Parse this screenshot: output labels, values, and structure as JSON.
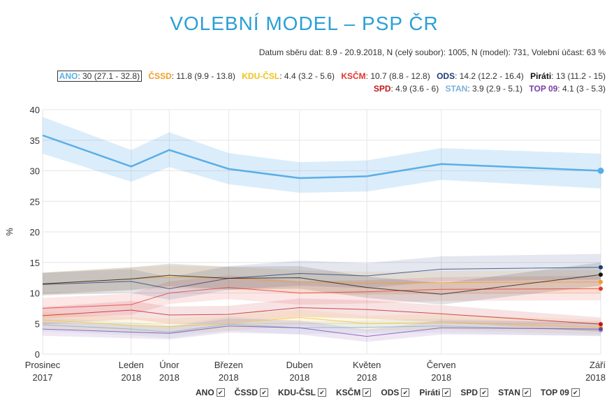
{
  "title": "VOLEBNÍ MODEL – PSP ČR",
  "subtitle": "Datum sběru dat: 8.9 - 20.9.2018, N (celý soubor): 1005, N (model): 731, Volební účast: 63 %",
  "legend_top": [
    {
      "name": "ANO",
      "text": ": 30 (27.1 - 32.8)",
      "color": "#5aaee8"
    },
    {
      "name": "ČSSD",
      "text": ": 11.8 (9.9 - 13.8)",
      "color": "#f29c23"
    },
    {
      "name": "KDU-ČSL",
      "text": ": 4.4 (3.2 - 5.6)",
      "color": "#f3c11c"
    },
    {
      "name": "KSČM",
      "text": ": 10.7 (8.8 - 12.8)",
      "color": "#e3342f"
    },
    {
      "name": "ODS",
      "text": ": 14.2 (12.2 - 16.4)",
      "color": "#1f3a7a"
    },
    {
      "name": "Piráti",
      "text": ": 13 (11.2 - 15)",
      "color": "#111111"
    },
    {
      "name": "SPD",
      "text": ": 4.9 (3.6 - 6)",
      "color": "#c0171d"
    },
    {
      "name": "STAN",
      "text": ": 3.9 (2.9 - 5.1)",
      "color": "#7ab0dc"
    },
    {
      "name": "TOP 09",
      "text": ": 4.1 (3 - 5.3)",
      "color": "#7b3fa6"
    }
  ],
  "bottom_legend": [
    "ANO",
    "ČSSD",
    "KDU-ČSL",
    "KSČM",
    "ODS",
    "Piráti",
    "SPD",
    "STAN",
    "TOP 09"
  ],
  "check_glyph": "✔",
  "chart_data": {
    "type": "line",
    "ylabel": "%",
    "xlabel": "",
    "ylim": [
      0,
      40
    ],
    "yticks": [
      0,
      5,
      10,
      15,
      20,
      25,
      30,
      35,
      40
    ],
    "grid": true,
    "x": [
      {
        "line1": "Prosinec",
        "line2": "2017",
        "t": 0
      },
      {
        "line1": "Leden",
        "line2": "2018",
        "t": 1
      },
      {
        "line1": "Únor",
        "line2": "2018",
        "t": 1.43
      },
      {
        "line1": "Březen",
        "line2": "2018",
        "t": 2.1
      },
      {
        "line1": "Duben",
        "line2": "2018",
        "t": 2.9
      },
      {
        "line1": "Květen",
        "line2": "2018",
        "t": 3.66
      },
      {
        "line1": "Červen",
        "line2": "2018",
        "t": 4.5
      },
      {
        "line1": "Září",
        "line2": "2018",
        "t": 6.3
      }
    ],
    "series": [
      {
        "name": "ANO",
        "color": "#5aaee8",
        "width": 2.5,
        "values": [
          35.8,
          30.7,
          33.4,
          30.3,
          28.8,
          29.1,
          31.1,
          30.0
        ],
        "low": [
          32.8,
          28.2,
          30.6,
          27.8,
          26.4,
          26.6,
          28.5,
          27.1
        ],
        "high": [
          38.8,
          33.4,
          36.3,
          32.9,
          31.4,
          31.7,
          33.7,
          32.8
        ]
      },
      {
        "name": "ČSSD",
        "color": "#f29c23",
        "width": 1,
        "values": [
          11.5,
          12.3,
          12.6,
          12.4,
          11.8,
          11.6,
          11.7,
          11.8
        ],
        "low": [
          9.6,
          10.4,
          10.7,
          10.5,
          9.9,
          9.7,
          9.8,
          9.9
        ],
        "high": [
          13.4,
          14.2,
          14.5,
          14.3,
          13.7,
          13.5,
          13.6,
          13.8
        ]
      },
      {
        "name": "KDU-ČSL",
        "color": "#f3c11c",
        "width": 1,
        "values": [
          5.6,
          4.7,
          4.5,
          5.0,
          6.0,
          5.0,
          5.2,
          4.4
        ],
        "low": [
          4.3,
          3.5,
          3.3,
          3.8,
          4.7,
          3.8,
          4.0,
          3.2
        ],
        "high": [
          6.9,
          6.0,
          5.8,
          6.3,
          7.3,
          6.3,
          6.5,
          5.6
        ]
      },
      {
        "name": "KSČM",
        "color": "#e3342f",
        "width": 1,
        "values": [
          7.5,
          8.1,
          10.0,
          10.9,
          10.0,
          10.2,
          10.6,
          10.7
        ],
        "low": [
          5.9,
          6.4,
          8.2,
          9.0,
          8.1,
          8.3,
          8.7,
          8.8
        ],
        "high": [
          9.2,
          9.9,
          11.9,
          12.9,
          11.9,
          12.1,
          12.6,
          12.8
        ]
      },
      {
        "name": "ODS",
        "color": "#1f3a7a",
        "width": 1,
        "values": [
          11.4,
          11.9,
          10.7,
          12.4,
          13.2,
          12.8,
          13.9,
          14.2
        ],
        "low": [
          9.6,
          10.0,
          8.9,
          10.5,
          11.2,
          10.8,
          11.9,
          12.2
        ],
        "high": [
          13.3,
          13.9,
          12.6,
          14.4,
          15.3,
          14.9,
          16.0,
          16.4
        ]
      },
      {
        "name": "Piráti",
        "color": "#111111",
        "width": 1,
        "values": [
          11.5,
          12.3,
          12.9,
          12.4,
          12.5,
          10.9,
          9.8,
          13.0
        ],
        "low": [
          9.8,
          10.5,
          11.1,
          10.6,
          10.7,
          9.2,
          8.1,
          11.2
        ],
        "high": [
          13.3,
          14.2,
          14.8,
          14.3,
          14.4,
          12.7,
          11.6,
          15.0
        ]
      },
      {
        "name": "SPD",
        "color": "#c0171d",
        "width": 1,
        "values": [
          6.3,
          7.2,
          6.4,
          6.5,
          7.6,
          7.3,
          6.6,
          4.9
        ],
        "low": [
          4.9,
          5.7,
          5.0,
          5.1,
          6.1,
          5.8,
          5.2,
          3.6
        ],
        "high": [
          7.7,
          8.7,
          7.8,
          7.9,
          9.1,
          8.8,
          8.0,
          6.0
        ]
      },
      {
        "name": "STAN",
        "color": "#7ab0dc",
        "width": 1,
        "values": [
          4.8,
          4.1,
          3.6,
          4.9,
          4.3,
          4.4,
          4.6,
          3.9
        ],
        "low": [
          3.7,
          3.1,
          2.6,
          3.8,
          3.3,
          3.4,
          3.5,
          2.9
        ],
        "high": [
          6.0,
          5.2,
          4.7,
          6.1,
          5.4,
          5.5,
          5.8,
          5.1
        ]
      },
      {
        "name": "TOP 09",
        "color": "#7b3fa6",
        "width": 1,
        "values": [
          4.1,
          3.6,
          3.4,
          4.6,
          4.3,
          2.9,
          4.3,
          4.1
        ],
        "low": [
          3.0,
          2.6,
          2.4,
          3.5,
          3.2,
          2.0,
          3.2,
          3.0
        ],
        "high": [
          5.3,
          4.7,
          4.5,
          5.8,
          5.5,
          4.0,
          5.5,
          5.3
        ]
      }
    ]
  }
}
